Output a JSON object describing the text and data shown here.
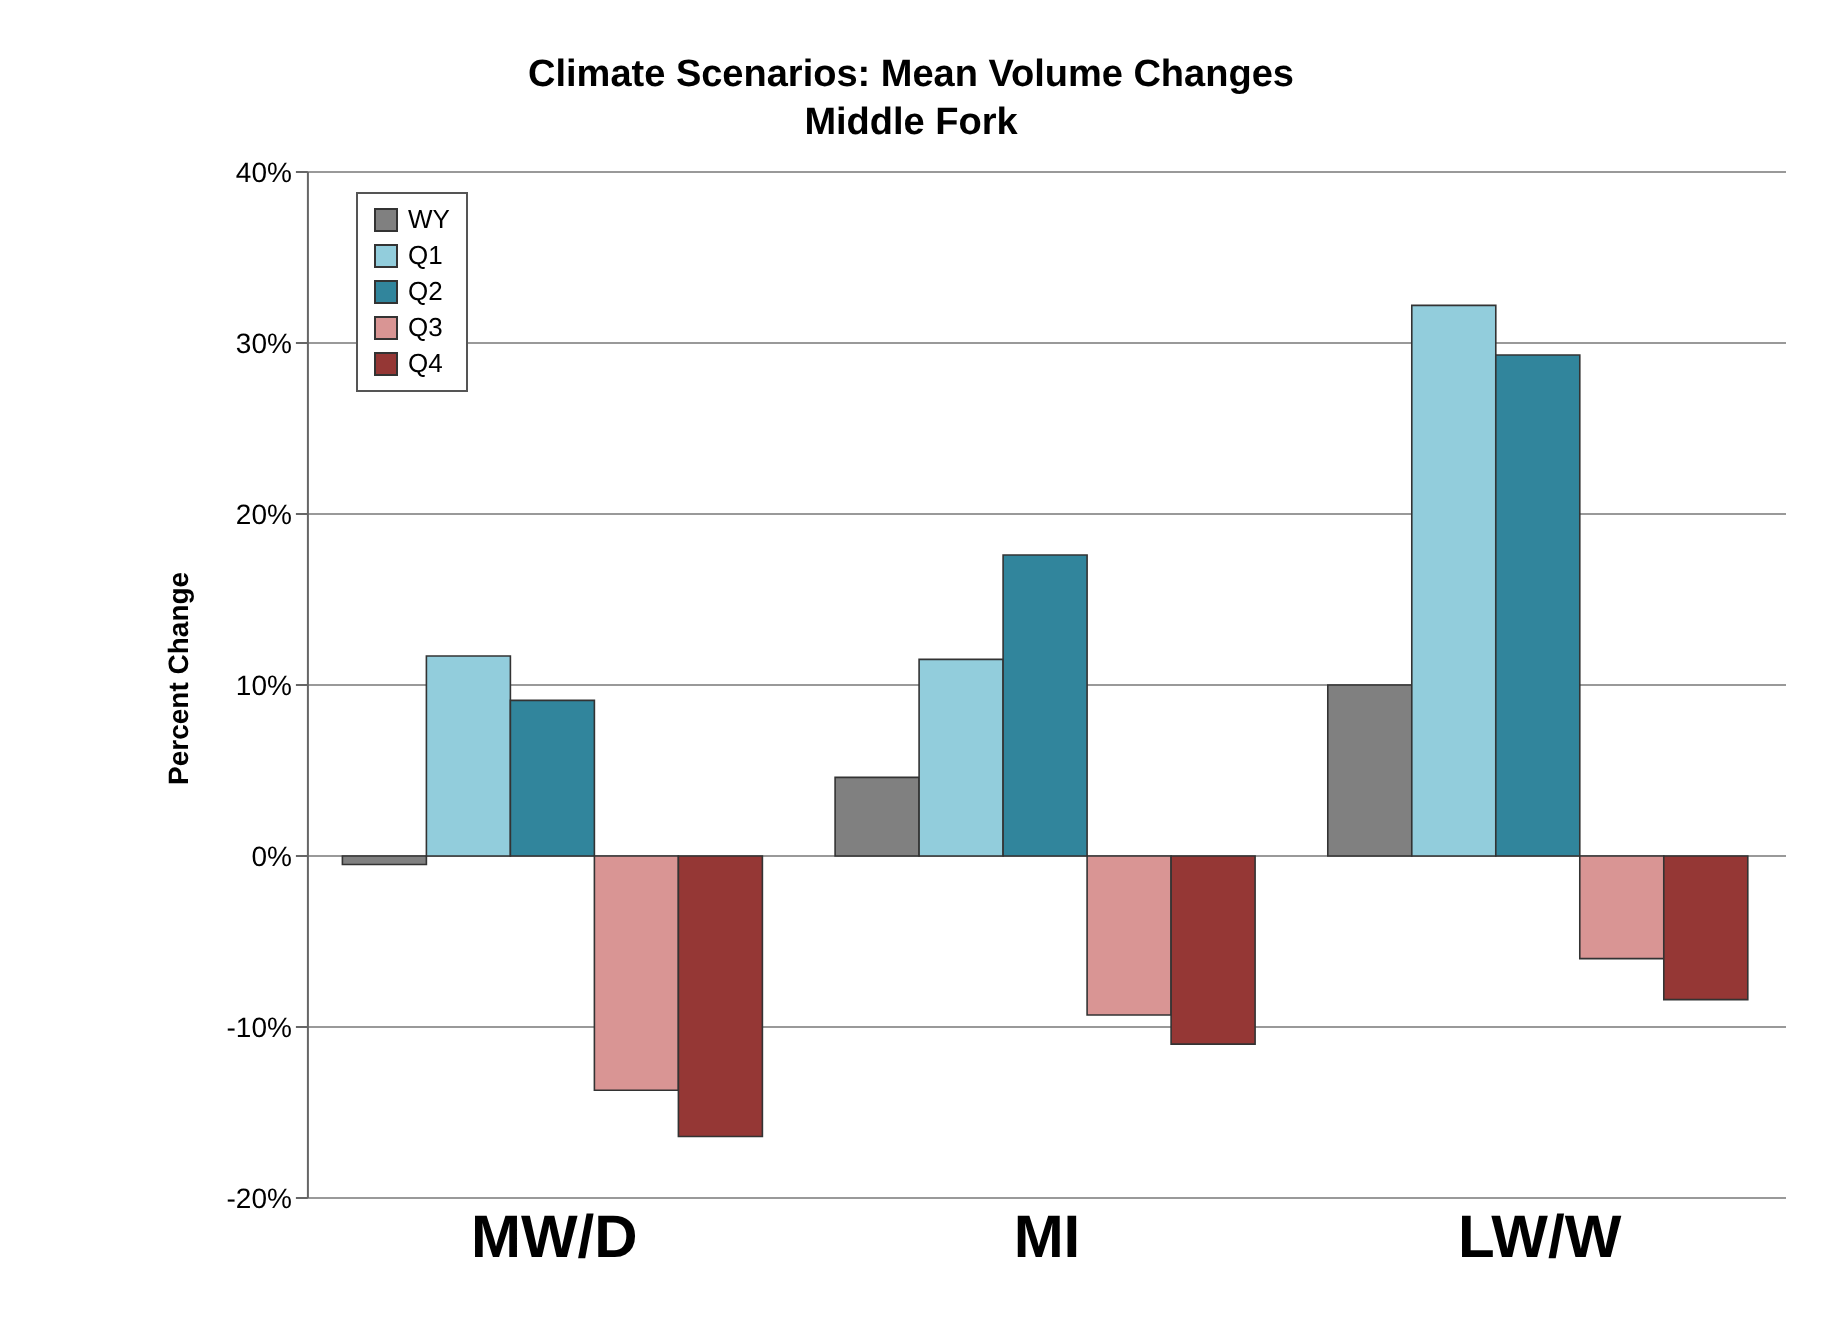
{
  "chart_data": {
    "type": "bar",
    "title": "Climate Scenarios:  Mean Volume Changes",
    "subtitle": "Middle Fork",
    "ylabel": "Percent Change",
    "categories": [
      "MW/D",
      "MI",
      "LW/W"
    ],
    "series": [
      {
        "name": "WY",
        "color": "#808080",
        "values": [
          -0.5,
          4.6,
          10.0
        ]
      },
      {
        "name": "Q1",
        "color": "#92cddc",
        "values": [
          11.7,
          11.5,
          32.2
        ]
      },
      {
        "name": "Q2",
        "color": "#31859c",
        "values": [
          9.1,
          17.6,
          29.3
        ]
      },
      {
        "name": "Q3",
        "color": "#d99594",
        "values": [
          -13.7,
          -9.3,
          -6.0
        ]
      },
      {
        "name": "Q4",
        "color": "#953735",
        "values": [
          -16.4,
          -11.0,
          -8.4
        ]
      }
    ],
    "ylim": [
      -20,
      40
    ],
    "yticks": [
      {
        "value": -20,
        "label": "-20%"
      },
      {
        "value": -10,
        "label": "-10%"
      },
      {
        "value": 0,
        "label": "0%"
      },
      {
        "value": 10,
        "label": "10%"
      },
      {
        "value": 20,
        "label": "20%"
      },
      {
        "value": 30,
        "label": "30%"
      },
      {
        "value": 40,
        "label": "40%"
      }
    ],
    "grid": "y",
    "legend": "top left"
  }
}
